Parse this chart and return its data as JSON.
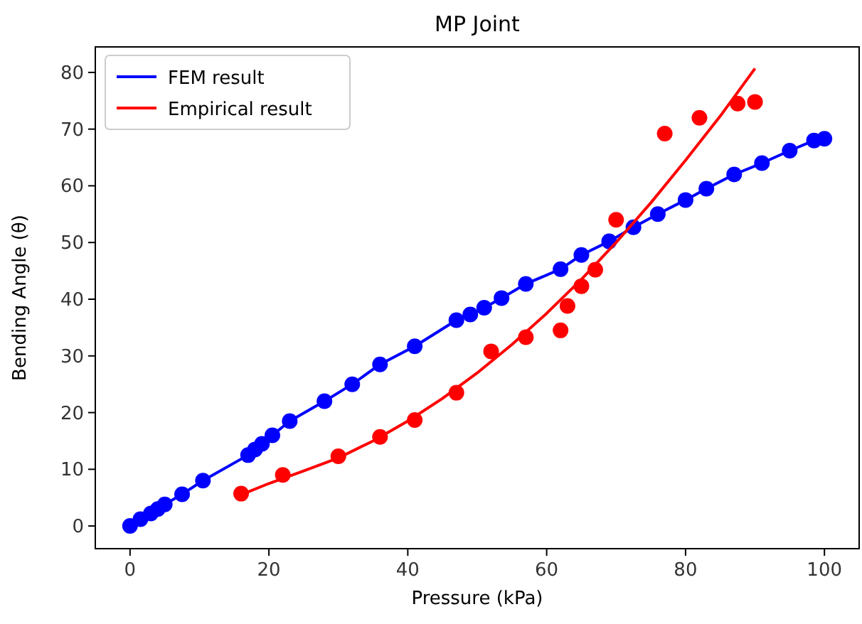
{
  "chart_data": {
    "type": "line",
    "title": "MP Joint",
    "xlabel": "Pressure (kPa)",
    "ylabel": "Bending Angle (θ)",
    "xlim": [
      -5,
      105
    ],
    "ylim": [
      -4,
      84.5
    ],
    "xticks": [
      0,
      20,
      40,
      60,
      80,
      100
    ],
    "yticks": [
      0,
      10,
      20,
      30,
      40,
      50,
      60,
      70,
      80
    ],
    "grid": false,
    "legend": "top left",
    "series": [
      {
        "name": "FEM result",
        "color": "#0000ff",
        "marker": "circle",
        "x": [
          0,
          1.5,
          3,
          4,
          5,
          7.5,
          10.5,
          17,
          18,
          19,
          20.5,
          23,
          28,
          32,
          36,
          41,
          47,
          49,
          51,
          53.5,
          57,
          62,
          65,
          69,
          72.5,
          76,
          80,
          83,
          87,
          91,
          95,
          98.5,
          100
        ],
        "values": [
          0,
          1.2,
          2.2,
          3,
          3.8,
          5.6,
          8,
          12.5,
          13.5,
          14.5,
          16,
          18.5,
          22,
          25,
          28.5,
          31.7,
          36.3,
          37.3,
          38.5,
          40.2,
          42.7,
          45.3,
          47.8,
          50.2,
          52.7,
          55,
          57.5,
          59.5,
          62,
          64,
          66.2,
          68,
          68.3
        ]
      },
      {
        "name": "Empirical result",
        "color": "#ff0000",
        "marker": "none",
        "x": [
          16,
          20,
          25,
          30,
          35,
          40,
          45,
          50,
          55,
          60,
          65,
          70,
          75,
          80,
          85,
          90
        ],
        "values": [
          5.5,
          7.5,
          9.7,
          12,
          15,
          18.5,
          22.5,
          27,
          32,
          37.5,
          43.5,
          50,
          57,
          64.5,
          72.3,
          80.7
        ]
      },
      {
        "type": "scatter",
        "color": "#ff0000",
        "marker": "circle",
        "x": [
          16,
          22,
          30,
          36,
          41,
          47,
          52,
          57,
          62,
          63,
          65,
          67,
          70,
          77,
          82,
          87.5,
          90
        ],
        "values": [
          5.7,
          9,
          12.3,
          15.7,
          18.7,
          23.5,
          30.8,
          33.3,
          34.5,
          38.8,
          42.3,
          45.2,
          54,
          69.2,
          72,
          74.5,
          74.8
        ]
      }
    ]
  }
}
